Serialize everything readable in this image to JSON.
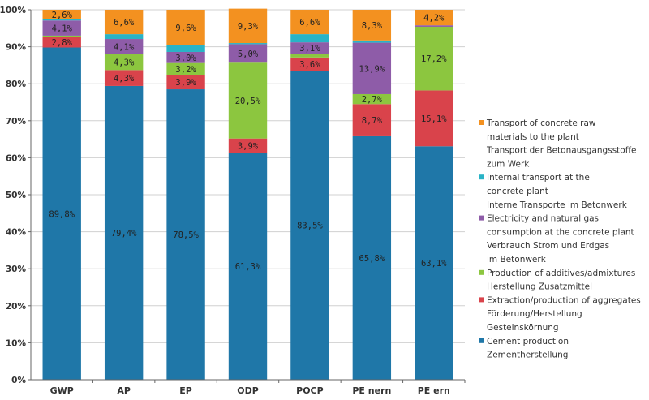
{
  "chart_data": {
    "type": "bar",
    "stacked": true,
    "categories": [
      "GWP",
      "AP",
      "EP",
      "ODP",
      "POCP",
      "PE nern",
      "PE ern"
    ],
    "ylim": [
      0,
      100
    ],
    "yticks": [
      "0%",
      "10%",
      "20%",
      "30%",
      "40%",
      "50%",
      "60%",
      "70%",
      "80%",
      "90%",
      "100%"
    ],
    "series": [
      {
        "name": "Cement production",
        "color": "#1f77a8",
        "values": [
          89.8,
          79.4,
          78.5,
          61.3,
          83.5,
          65.8,
          63.1
        ],
        "labels": [
          "89,8%",
          "79,4%",
          "78,5%",
          "61,3%",
          "83,5%",
          "65,8%",
          "63,1%"
        ]
      },
      {
        "name": "Extraction/production of aggregates",
        "color": "#d9434b",
        "values": [
          2.8,
          4.3,
          3.9,
          3.9,
          3.6,
          8.7,
          15.1
        ],
        "labels": [
          "2,8%",
          "4,3%",
          "3,9%",
          "3,9%",
          "3,6%",
          "8,7%",
          "15,1%"
        ]
      },
      {
        "name": "Production of additives/admixtures",
        "color": "#8cc63f",
        "values": [
          0.4,
          4.3,
          3.2,
          20.5,
          1.0,
          2.7,
          17.2
        ],
        "labels": [
          "",
          "4,3%",
          "3,2%",
          "20,5%",
          "",
          "2,7%",
          "17,2%"
        ]
      },
      {
        "name": "Electricity and natural gas consumption at the concrete plant",
        "color": "#8e5ca8",
        "values": [
          4.1,
          4.1,
          3.0,
          5.0,
          3.1,
          13.9,
          0.4
        ],
        "labels": [
          "4,1%",
          "4,1%",
          "3,0%",
          "5,0%",
          "3,1%",
          "13,9%",
          ""
        ]
      },
      {
        "name": "Internal transport at the concrete plant",
        "color": "#29b3c6",
        "values": [
          0.3,
          1.3,
          1.8,
          0.3,
          2.2,
          0.6,
          0.0
        ],
        "labels": [
          "",
          "",
          "",
          "",
          "",
          "",
          ""
        ]
      },
      {
        "name": "Transport of concrete raw materials to the plant",
        "color": "#f39120",
        "values": [
          2.6,
          6.6,
          9.6,
          9.3,
          6.6,
          8.3,
          4.2
        ],
        "labels": [
          "2,6%",
          "6,6%",
          "9,6%",
          "9,3%",
          "6,6%",
          "8,3%",
          "4,2%"
        ]
      }
    ],
    "legend": [
      {
        "color": "#f39120",
        "lines": [
          "Transport of concrete raw",
          "materials to the plant",
          "Transport der Betonausgangsstoffe",
          "zum Werk"
        ]
      },
      {
        "color": "#29b3c6",
        "lines": [
          "Internal transport at the",
          "concrete plant",
          "Interne Transporte im Betonwerk"
        ]
      },
      {
        "color": "#8e5ca8",
        "lines": [
          "Electricity and natural gas",
          "consumption at the concrete plant",
          "Verbrauch Strom und Erdgas",
          "im Betonwerk"
        ]
      },
      {
        "color": "#8cc63f",
        "lines": [
          "Production of additives/admixtures",
          "Herstellung Zusatzmittel"
        ]
      },
      {
        "color": "#d9434b",
        "lines": [
          "Extraction/production of aggregates",
          "Förderung/Herstellung",
          "Gesteinskörnung"
        ]
      },
      {
        "color": "#1f77a8",
        "lines": [
          "Cement production",
          "Zementherstellung"
        ]
      }
    ],
    "legend_position": "right",
    "grid": true
  }
}
